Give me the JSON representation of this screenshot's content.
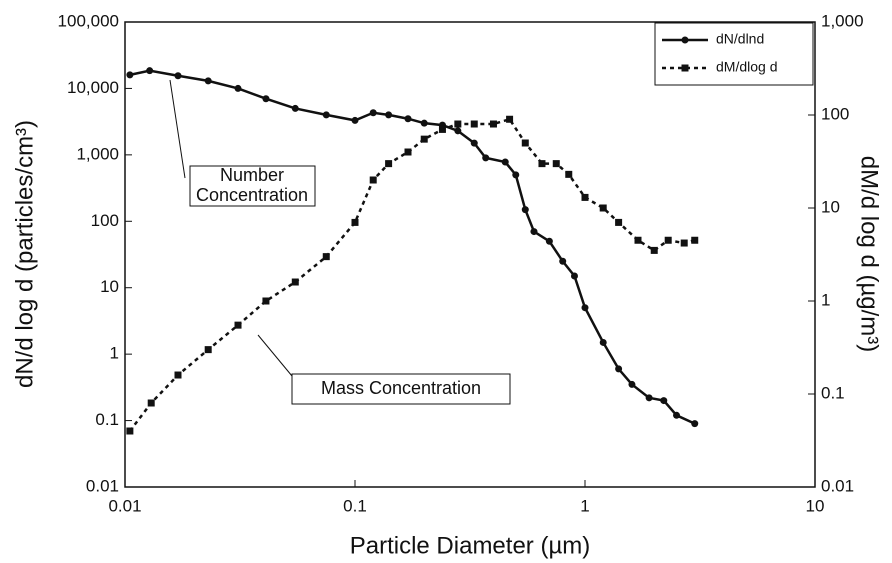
{
  "chart_data": {
    "type": "line",
    "xlabel": "Particle Diameter (µm)",
    "ylabel": "dN/d log d (particles/cm³)",
    "y2label": "dM/d log d (µg/m³)",
    "xscale": "log",
    "yscale": "log",
    "y2scale": "log",
    "xlim": [
      0.01,
      10
    ],
    "xticks": [
      0.01,
      0.1,
      1,
      10
    ],
    "ylim": [
      0.01,
      100000
    ],
    "yticks": [
      0.01,
      0.1,
      1,
      10,
      100,
      {
        "value": 1000,
        "label": "1,000"
      },
      {
        "value": 10000,
        "label": "10,000"
      },
      {
        "value": 100000,
        "label": "100,000"
      }
    ],
    "y2lim": [
      0.01,
      1000
    ],
    "y2ticks": [
      0.01,
      0.1,
      1,
      10,
      100,
      {
        "value": 1000,
        "label": "1,000"
      }
    ],
    "grid": false,
    "legend": "upper right",
    "series": [
      {
        "name": "dN/dlnd",
        "color": "#111111",
        "dash": false,
        "marker": "circle",
        "x": [
          0.0105,
          0.0128,
          0.017,
          0.023,
          0.031,
          0.041,
          0.055,
          0.075,
          0.1,
          0.12,
          0.14,
          0.17,
          0.2,
          0.24,
          0.28,
          0.33,
          0.37,
          0.45,
          0.5,
          0.55,
          0.6,
          0.7,
          0.8,
          0.9,
          1.0,
          1.2,
          1.4,
          1.6,
          1.9,
          2.2,
          2.5,
          3.0
        ],
        "values": [
          16000,
          18500,
          15500,
          13000,
          10000,
          7000,
          5000,
          4000,
          3300,
          4300,
          4000,
          3500,
          3000,
          2800,
          2300,
          1500,
          900,
          780,
          500,
          150,
          70,
          50,
          25,
          15,
          5,
          1.5,
          0.6,
          0.35,
          0.22,
          0.2,
          0.12,
          0.09
        ]
      },
      {
        "name": "dM/dlog d",
        "color": "#111111",
        "dash": true,
        "marker": "square",
        "axis": "y2",
        "x": [
          0.0105,
          0.013,
          0.017,
          0.023,
          0.031,
          0.041,
          0.055,
          0.075,
          0.1,
          0.12,
          0.14,
          0.17,
          0.2,
          0.24,
          0.28,
          0.33,
          0.4,
          0.47,
          0.55,
          0.65,
          0.75,
          0.85,
          1.0,
          1.2,
          1.4,
          1.7,
          2.0,
          2.3,
          2.7,
          3.0
        ],
        "values": [
          0.04,
          0.08,
          0.16,
          0.3,
          0.55,
          1.0,
          1.6,
          3.0,
          7,
          20,
          30,
          40,
          55,
          70,
          80,
          80,
          80,
          90,
          50,
          30,
          30,
          23,
          13,
          10,
          7,
          4.5,
          3.5,
          4.5,
          4.2,
          4.5
        ]
      }
    ],
    "annotations": [
      {
        "lines": [
          "Number",
          "Concentration"
        ]
      },
      {
        "lines": [
          "Mass Concentration"
        ]
      }
    ]
  }
}
